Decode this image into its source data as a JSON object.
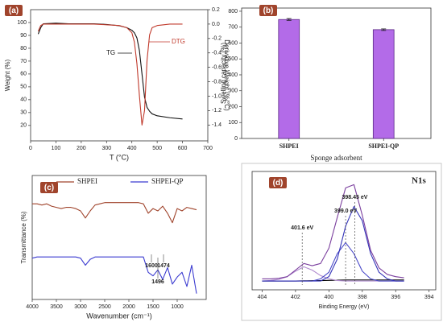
{
  "chart_data": [
    {
      "type": "line",
      "panel_label": "(a)",
      "xlabel": "T (°C)",
      "ylabel": "Weight (%)",
      "y2label": "Derivative Weight (%/°C)",
      "xlim": [
        0,
        700
      ],
      "xticks": [
        0,
        100,
        200,
        300,
        400,
        500,
        600,
        700
      ],
      "ylim": [
        8,
        110
      ],
      "yticks": [
        20,
        30,
        40,
        50,
        60,
        70,
        80,
        90,
        100
      ],
      "y2lim": [
        -1.62,
        0.2
      ],
      "y2ticks": [
        0.2,
        {
          "value": 0,
          "label": "0.0"
        },
        -0.2,
        -0.4,
        -0.6,
        -0.8,
        {
          "value": -1,
          "label": "-1.0"
        },
        -1.2,
        -1.4
      ],
      "x": [
        30,
        40,
        50,
        100,
        150,
        200,
        250,
        300,
        350,
        380,
        400,
        410,
        420,
        430,
        440,
        450,
        460,
        470,
        480,
        500,
        550,
        600
      ],
      "series": [
        {
          "name": "TG",
          "color": "#111111",
          "values": [
            91,
            96,
            99,
            99.5,
            99,
            99,
            99,
            98.5,
            97.5,
            96,
            94,
            92,
            88,
            78,
            60,
            42,
            34,
            31,
            29,
            27.5,
            26,
            25
          ]
        },
        {
          "name": "DTG",
          "color": "#c0392b",
          "axis": "y2",
          "values": [
            -0.1,
            -0.02,
            0,
            0,
            0,
            0,
            0,
            -0.01,
            -0.02,
            -0.05,
            -0.12,
            -0.25,
            -0.55,
            -1.0,
            -1.4,
            -1.2,
            -0.5,
            -0.15,
            -0.05,
            -0.02,
            0,
            0
          ]
        }
      ]
    },
    {
      "type": "bar",
      "panel_label": "(b)",
      "xlabel": "Sponge adsorbent",
      "ylabel": "Swelling capacity (%)",
      "categories": [
        "SHPEI",
        "SHPEI-QP"
      ],
      "values": [
        748,
        684
      ],
      "errors": [
        6,
        5
      ],
      "color": "#b36be8",
      "ylim": [
        0,
        820
      ],
      "yticks": [
        0,
        100,
        200,
        300,
        400,
        500,
        600,
        700,
        800
      ]
    },
    {
      "type": "line",
      "panel_label": "(c)",
      "xlabel": "Wavenumber (cm⁻¹)",
      "ylabel": "Transmittance (%)",
      "xlim": [
        4000,
        400
      ],
      "xticks": [
        4000,
        3500,
        3000,
        2500,
        2000,
        1500,
        1000
      ],
      "ylim": [
        -5,
        100
      ],
      "annotations": [
        "1600",
        "1474",
        "1496"
      ],
      "x": [
        4000,
        3900,
        3800,
        3700,
        3600,
        3500,
        3400,
        3300,
        3200,
        3100,
        3000,
        2900,
        2800,
        2700,
        2600,
        2500,
        2400,
        2300,
        2200,
        2100,
        2000,
        1900,
        1800,
        1700,
        1600,
        1500,
        1400,
        1300,
        1200,
        1100,
        1000,
        900,
        800,
        700,
        600
      ],
      "series": [
        {
          "name": "SHPEI",
          "color": "#a0442c",
          "values": [
            76,
            76,
            75,
            76,
            74,
            73,
            72,
            73,
            73,
            72,
            70,
            64,
            70,
            75,
            76,
            77,
            77,
            77,
            77,
            77,
            77,
            77,
            77,
            76,
            68,
            72,
            70,
            74,
            68,
            60,
            72,
            70,
            73,
            72,
            71
          ]
        },
        {
          "name": "SHPEI-QP",
          "color": "#3b3bd0",
          "values": [
            30,
            31,
            31,
            31,
            31,
            31,
            31,
            31,
            31,
            31,
            30,
            24,
            29,
            31,
            31,
            31,
            31,
            31,
            31,
            31,
            31,
            31,
            31,
            31,
            18,
            15,
            20,
            12,
            22,
            8,
            14,
            18,
            6,
            24,
            0
          ]
        }
      ]
    },
    {
      "type": "line",
      "panel_label": "(d)",
      "xlabel": "Binding Energy (eV)",
      "annotation": "N1s",
      "xlim": [
        404.6,
        393.6
      ],
      "xticks": [
        404,
        402,
        400,
        398,
        396,
        394
      ],
      "ylim": [
        -8,
        100
      ],
      "peaks": [
        {
          "text": "401.6 eV",
          "x": 401.6
        },
        {
          "text": "399.0 eV",
          "x": 399.0
        },
        {
          "text": "398.45 eV",
          "x": 398.45
        }
      ],
      "x": [
        404,
        403.5,
        403,
        402.5,
        402,
        401.5,
        401,
        400.5,
        400,
        399.5,
        399,
        398.5,
        398,
        397.5,
        397,
        396.5,
        396,
        395.5
      ],
      "series": [
        {
          "color": "#000000",
          "values": [
            0,
            0,
            0,
            0,
            0,
            0.2,
            0.3,
            0.4,
            0.6,
            0.8,
            1,
            1,
            1,
            1,
            1,
            1,
            1,
            1
          ]
        },
        {
          "color": "#b18ccf",
          "values": [
            0,
            0.5,
            1.5,
            4,
            9,
            13,
            10,
            5,
            2,
            0.5,
            0,
            0,
            0,
            0,
            0,
            0,
            0,
            0
          ]
        },
        {
          "color": "#4a4ac8",
          "values": [
            0,
            0,
            0,
            0,
            0,
            0,
            0,
            2,
            8,
            25,
            35,
            25,
            9,
            2,
            0,
            0,
            0,
            0
          ]
        },
        {
          "color": "#3434b8",
          "values": [
            0,
            0,
            0,
            0,
            0,
            0,
            0,
            0,
            4,
            20,
            50,
            68,
            55,
            25,
            8,
            2,
            0,
            0
          ]
        },
        {
          "color": "#7b3f9e",
          "values": [
            2,
            2,
            2.5,
            4,
            10,
            16,
            14,
            16,
            30,
            58,
            85,
            88,
            60,
            28,
            12,
            6,
            4,
            3
          ]
        }
      ]
    }
  ]
}
